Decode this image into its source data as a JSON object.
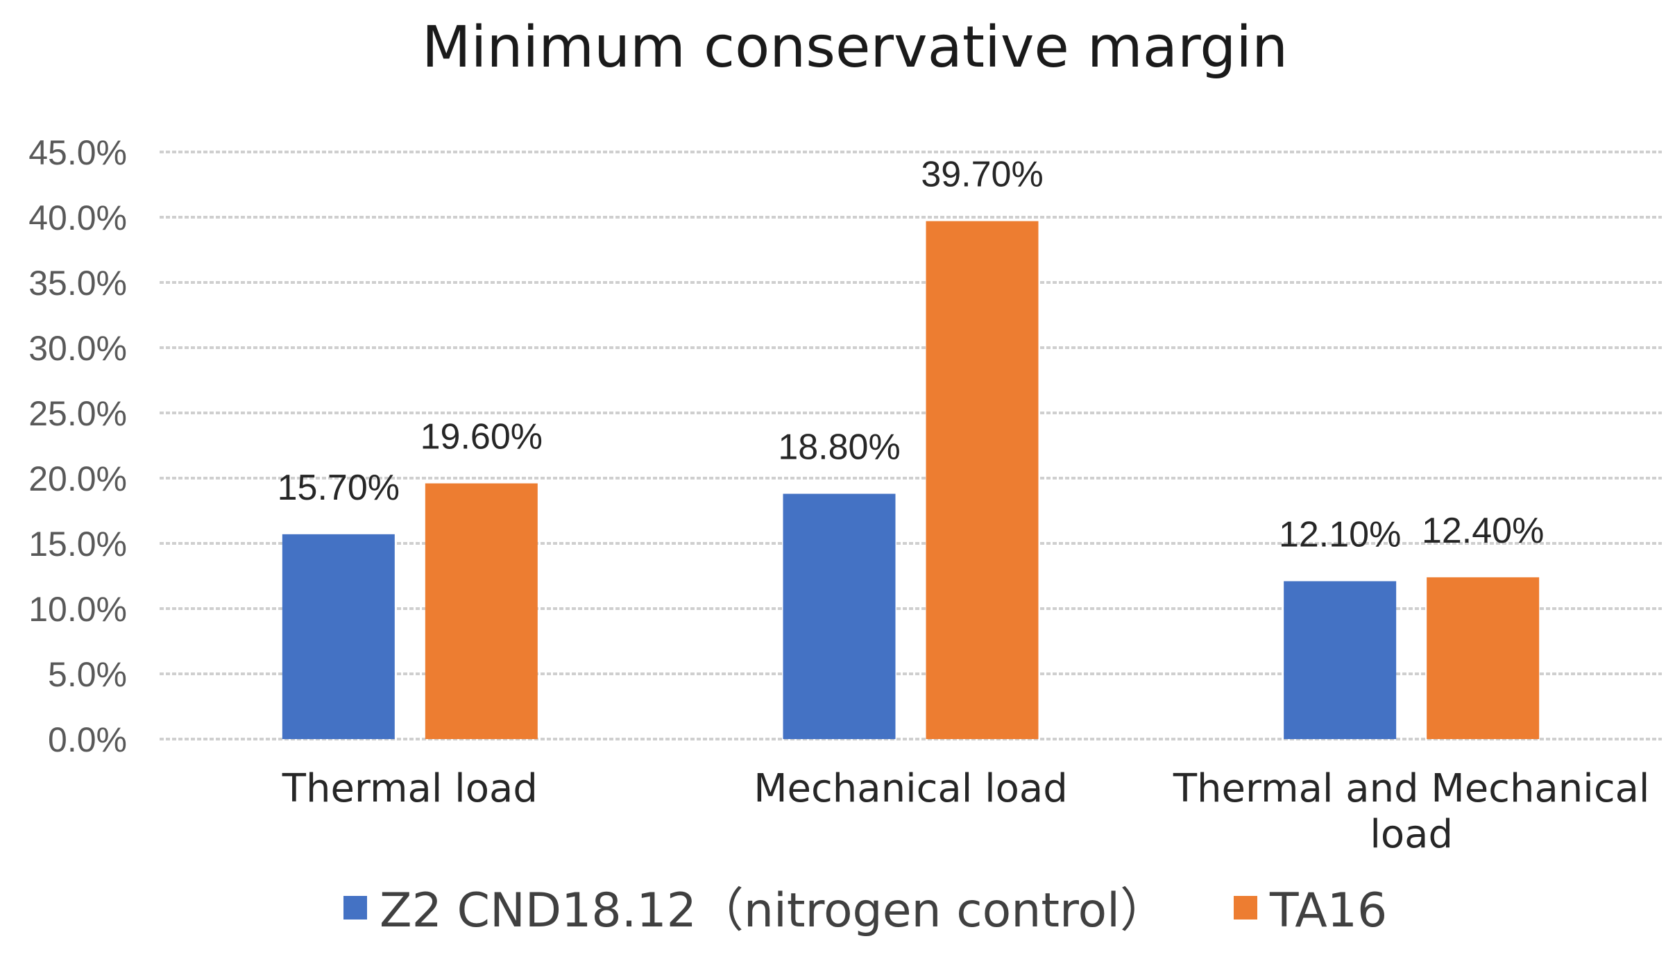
{
  "chart_data": {
    "type": "bar",
    "title": "Minimum conservative margin",
    "categories": [
      [
        "Thermal load"
      ],
      [
        "Mechanical load"
      ],
      [
        "Thermal and Mechanical",
        "load"
      ]
    ],
    "series": [
      {
        "name": "Z2 CND18.12（nitrogen control）",
        "color": "#4472C4",
        "values": [
          15.7,
          18.8,
          12.1
        ],
        "labels": [
          "15.70%",
          "18.80%",
          "12.10%"
        ]
      },
      {
        "name": "TA16",
        "color": "#ED7D31",
        "values": [
          19.6,
          39.7,
          12.4
        ],
        "labels": [
          "19.60%",
          "39.70%",
          "12.40%"
        ]
      }
    ],
    "yticks": [
      0,
      5,
      10,
      15,
      20,
      25,
      30,
      35,
      40,
      45
    ],
    "ytick_labels": [
      "0.0%",
      "5.0%",
      "10.0%",
      "15.0%",
      "20.0%",
      "25.0%",
      "30.0%",
      "35.0%",
      "40.0%",
      "45.0%"
    ],
    "ylim": [
      0,
      45
    ],
    "xlabel": "",
    "ylabel": "",
    "grid": true,
    "legend": "bottom"
  }
}
